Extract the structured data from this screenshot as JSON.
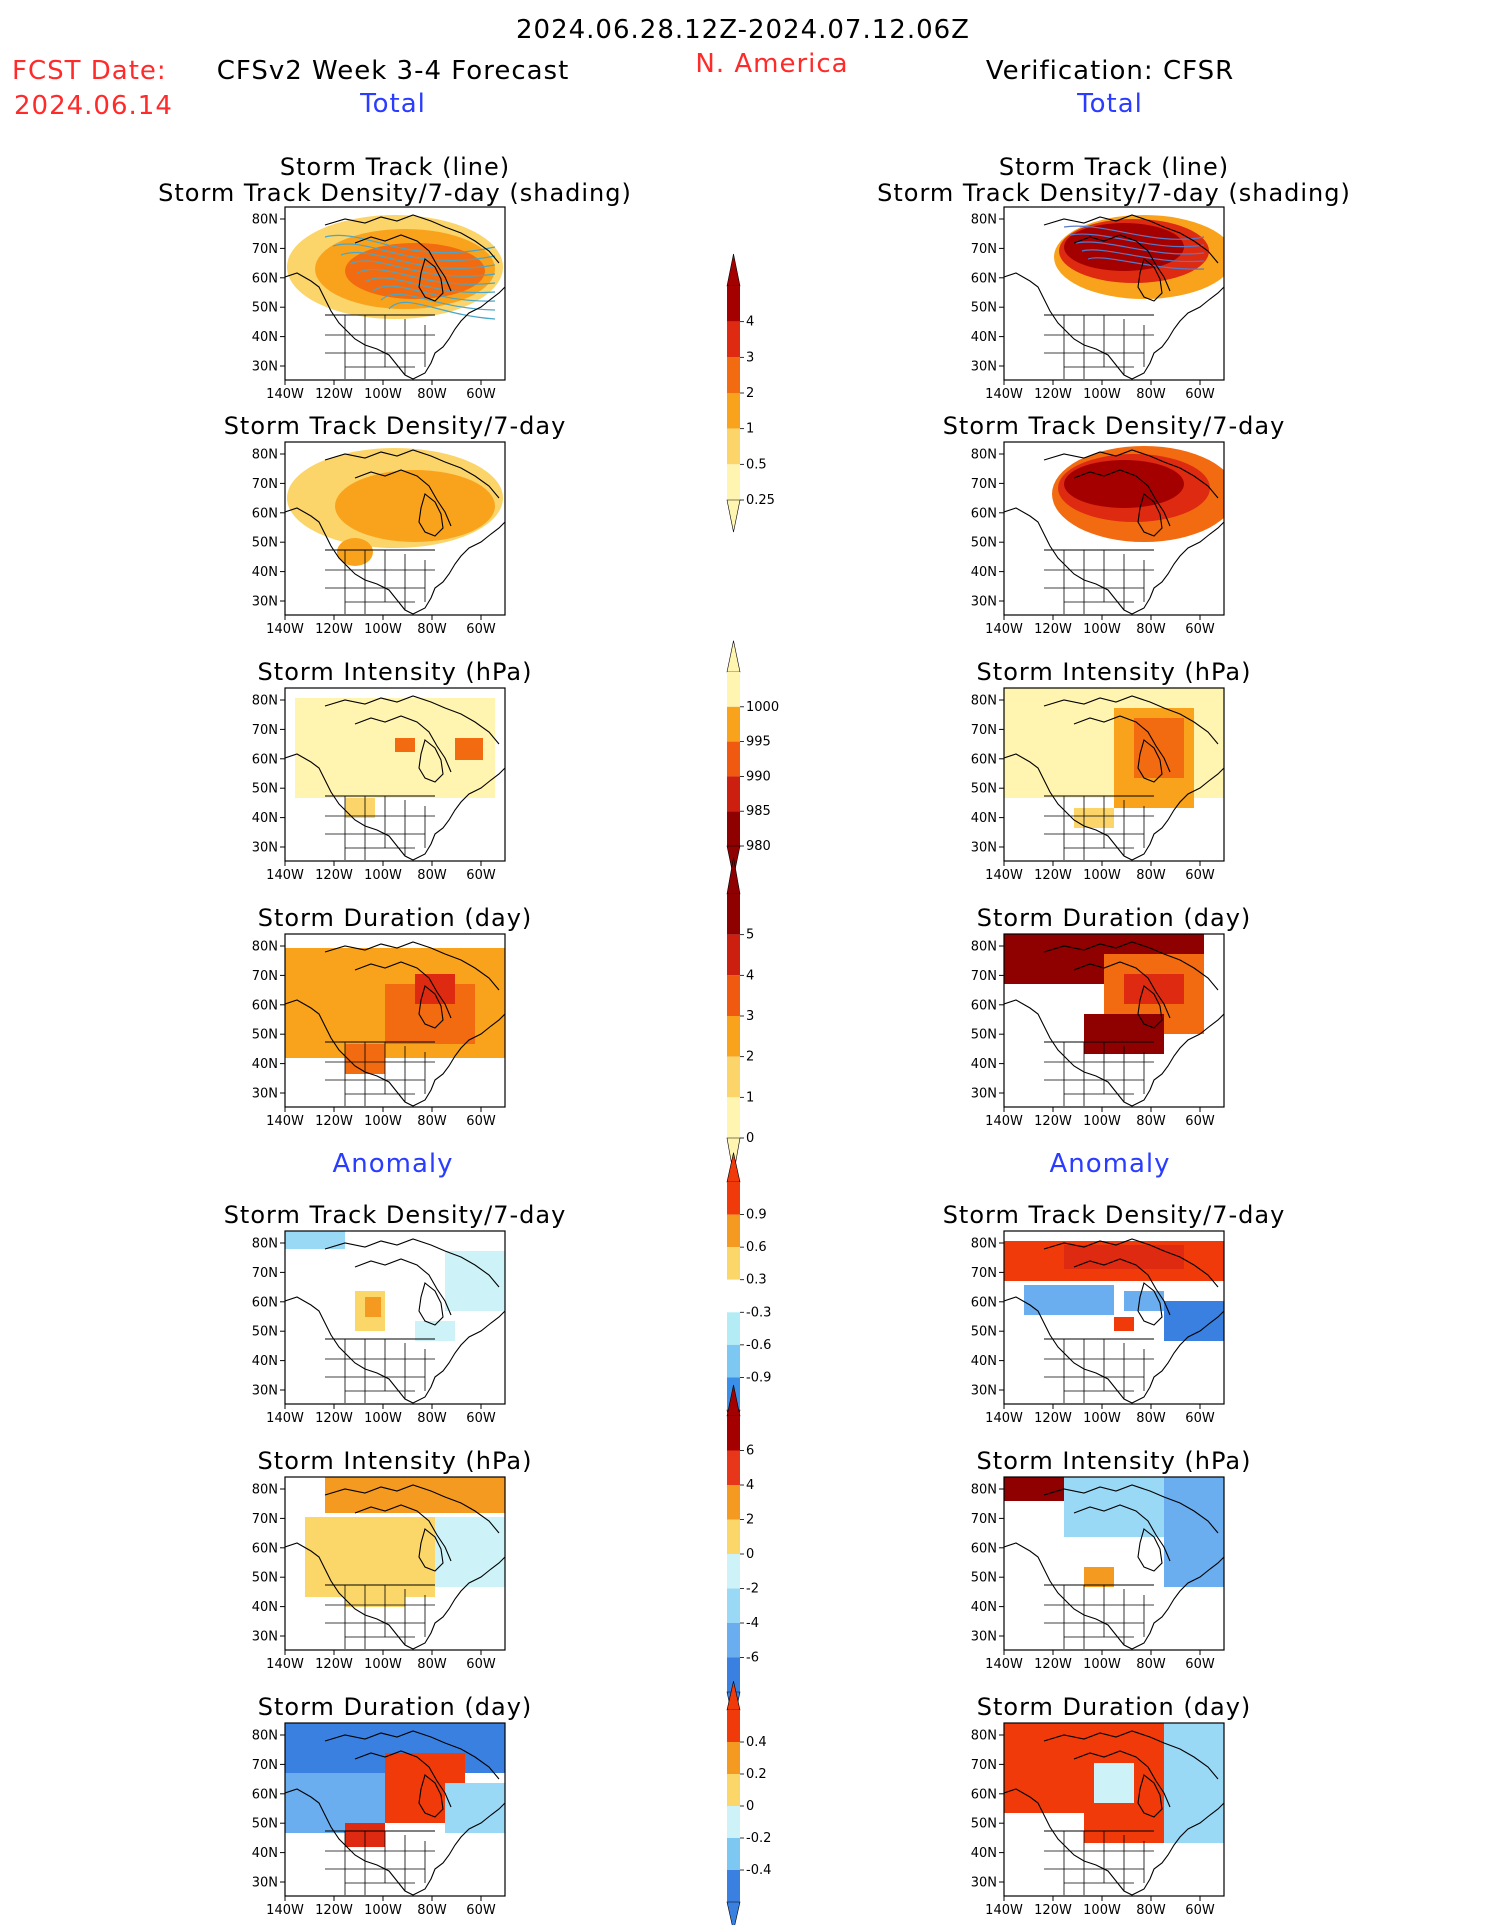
{
  "header": {
    "date_range": "2024.06.28.12Z-2024.07.12.06Z",
    "fcst_label": "FCST Date:",
    "fcst_date": "2024.06.14",
    "left_title": "CFSv2 Week 3-4 Forecast",
    "region": "N. America",
    "right_title": "Verification: CFSR"
  },
  "sections": {
    "total": "Total",
    "anomaly": "Anomaly"
  },
  "panel_titles": {
    "track_line": "Storm Track (line)",
    "track_shading": "Storm Track Density/7-day (shading)",
    "density": "Storm Track Density/7-day",
    "intensity": "Storm Intensity (hPa)",
    "duration": "Storm Duration (day)"
  },
  "axes": {
    "lat_ticks": [
      "80N",
      "70N",
      "60N",
      "50N",
      "40N",
      "30N"
    ],
    "lon_ticks": [
      "140W",
      "120W",
      "100W",
      "80W",
      "60W"
    ]
  },
  "colorbars": {
    "density_total": {
      "labels": [
        "4",
        "3",
        "2",
        "1",
        "0.5",
        "0.25"
      ],
      "colors": [
        "#a50000",
        "#dd2a10",
        "#f26b10",
        "#f9a31c",
        "#fbd46a",
        "#fff5b0"
      ]
    },
    "intensity_total": {
      "labels": [
        "1000",
        "995",
        "990",
        "985",
        "980"
      ],
      "colors": [
        "#fff5b0",
        "#f9a31c",
        "#ef5a10",
        "#cc1f10",
        "#8f0000"
      ]
    },
    "duration_total": {
      "labels": [
        "5",
        "4",
        "3",
        "2",
        "1",
        "0"
      ],
      "colors": [
        "#8f0000",
        "#cc1f10",
        "#ef5a10",
        "#f9a31c",
        "#fbd46a",
        "#fff5b0"
      ]
    },
    "density_anom": {
      "labels": [
        "0.9",
        "0.6",
        "0.3",
        "-0.3",
        "-0.6",
        "-0.9"
      ],
      "colors": [
        "#f03a0a",
        "#f59a20",
        "#fbd76a",
        "#ffffff",
        "#b4ecf6",
        "#7cc8f2",
        "#3a8fe8"
      ]
    },
    "intensity_anom": {
      "labels": [
        "6",
        "4",
        "2",
        "0",
        "-2",
        "-4",
        "-6"
      ],
      "colors": [
        "#a50000",
        "#e8361a",
        "#f59a20",
        "#fbd76a",
        "#cdf3f8",
        "#9ad9f5",
        "#6aaef0",
        "#3a80e0"
      ]
    },
    "duration_anom": {
      "labels": [
        "0.4",
        "0.2",
        "0",
        "-0.2",
        "-0.4"
      ],
      "colors": [
        "#f03a0a",
        "#f59a20",
        "#fbd76a",
        "#cdf3f8",
        "#7cc8f2",
        "#3a80e0"
      ]
    }
  }
}
